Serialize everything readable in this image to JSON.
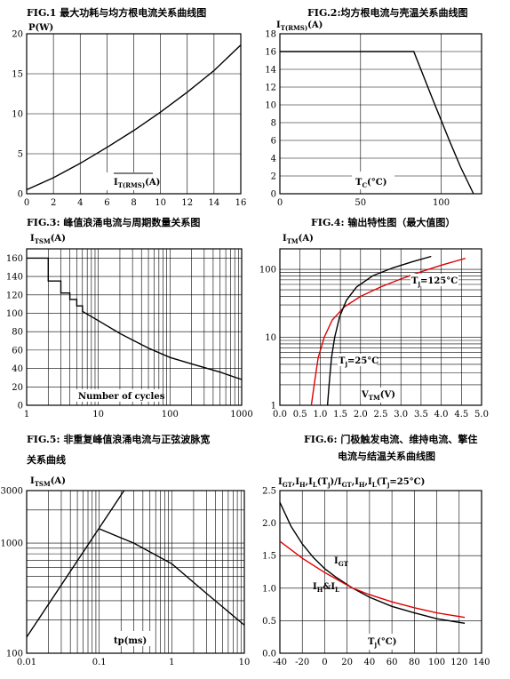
{
  "titles": {
    "fig1": "FIG.1  最大功耗与均方根电流关系曲线图",
    "fig2": "FIG.2:均方根电流与壳温关系曲线图",
    "fig3": "FIG.3:  峰值浪涌电流与周期数量关系图",
    "fig4": "FIG.4:  输出特性图（最大值图）",
    "fig5a": "FIG.5:  非重复峰值浪涌电流与正弦波脉宽",
    "fig5b": "关系曲线",
    "fig6a": "FIG.6:  门极触发电流、维持电流、擎住",
    "fig6b": "电流与结温关系曲线图"
  },
  "chart_data": [
    {
      "id": "fig1",
      "type": "line",
      "title": "最大功耗与均方根电流关系曲线图",
      "ylabel": "P(W)",
      "xlabel": "I_T(RMS)(A)",
      "xlim": [
        0,
        16
      ],
      "ylim": [
        0,
        20
      ],
      "xticks": [
        0,
        2,
        4,
        6,
        8,
        10,
        12,
        14,
        16
      ],
      "yticks": [
        0,
        5,
        10,
        15,
        20
      ],
      "grid": true,
      "series": [
        {
          "color": "#000000",
          "x": [
            0,
            2,
            4,
            6,
            8,
            10,
            12,
            14,
            16
          ],
          "y": [
            0.5,
            2.0,
            3.8,
            5.8,
            7.9,
            10.2,
            12.7,
            15.4,
            18.6
          ]
        }
      ]
    },
    {
      "id": "fig2",
      "type": "line",
      "title": "均方根电流与壳温关系曲线图",
      "ylabel": "I_T(RMS)(A)",
      "xlabel": "T_C(°C)",
      "xlim": [
        0,
        125
      ],
      "ylim": [
        0,
        18
      ],
      "xticks": [
        0,
        50,
        100
      ],
      "yticks": [
        0,
        2,
        4,
        6,
        8,
        10,
        12,
        14,
        16,
        18
      ],
      "grid": true,
      "series": [
        {
          "color": "#000000",
          "x": [
            0,
            83,
            95,
            105,
            112,
            120
          ],
          "y": [
            16,
            16,
            10.5,
            6.0,
            3.0,
            0
          ]
        }
      ]
    },
    {
      "id": "fig3",
      "type": "line",
      "title": "峰值浪涌电流与周期数量关系图",
      "ylabel": "I_TSM(A)",
      "xlabel": "Number of cycles",
      "xscale": "log",
      "xlim": [
        1,
        1000
      ],
      "ylim": [
        0,
        170
      ],
      "xticks": [
        1,
        10,
        100,
        1000
      ],
      "yticks": [
        0,
        20,
        40,
        60,
        80,
        100,
        120,
        140,
        160
      ],
      "grid": true,
      "series": [
        {
          "color": "#000000",
          "x": [
            1,
            2,
            2,
            3,
            3,
            4,
            4,
            5,
            5,
            6,
            6,
            10,
            20,
            50,
            100,
            200,
            500,
            1000
          ],
          "y": [
            160,
            160,
            135,
            135,
            122,
            122,
            115,
            115,
            108,
            108,
            102,
            92,
            78,
            62,
            52,
            45,
            36,
            28
          ]
        }
      ]
    },
    {
      "id": "fig4",
      "type": "line",
      "title": "输出特性图（最大值图）",
      "ylabel": "I_TM(A)",
      "xlabel": "V_TM(V)",
      "yscale": "log",
      "xlim": [
        0,
        5
      ],
      "ylim": [
        1,
        200
      ],
      "xticks": [
        0,
        0.5,
        1,
        1.5,
        2,
        2.5,
        3,
        3.5,
        4,
        4.5,
        5
      ],
      "xtick_labels": [
        "0.0",
        "0.5",
        "1.0",
        "1.5",
        "2.0",
        "2.5",
        "3.0",
        "3.5",
        "4.0",
        "4.5",
        "5.0"
      ],
      "yticks": [
        1,
        10,
        100
      ],
      "grid": true,
      "annotations": [
        "T_j=125°C",
        "T_j=25°C"
      ],
      "series": [
        {
          "name": "T_j=125°C",
          "color": "#e00000",
          "x": [
            0.78,
            0.85,
            0.95,
            1.1,
            1.3,
            1.6,
            2.0,
            2.5,
            3.0,
            3.5,
            4.0,
            4.6
          ],
          "y": [
            1,
            2,
            5,
            10,
            18,
            28,
            40,
            55,
            72,
            92,
            115,
            145
          ]
        },
        {
          "name": "T_j=25°C",
          "color": "#000000",
          "x": [
            1.18,
            1.22,
            1.28,
            1.36,
            1.48,
            1.65,
            1.9,
            2.3,
            2.8,
            3.3,
            3.75
          ],
          "y": [
            1,
            2,
            5,
            10,
            20,
            35,
            55,
            80,
            105,
            130,
            155
          ]
        }
      ]
    },
    {
      "id": "fig5",
      "type": "line",
      "title": "非重复峰值浪涌电流与正弦波脉宽关系曲线",
      "ylabel": "I_TSM(A)",
      "xlabel": "tp(ms)",
      "xscale": "log",
      "yscale": "log",
      "xlim": [
        0.01,
        10
      ],
      "ylim": [
        100,
        3000
      ],
      "xticks": [
        0.01,
        0.1,
        1,
        10
      ],
      "yticks": [
        100,
        1000,
        3000
      ],
      "grid": true,
      "series": [
        {
          "color": "#000000",
          "x": [
            0.01,
            0.22
          ],
          "y": [
            140,
            3000
          ]
        },
        {
          "color": "#000000",
          "x": [
            0.1,
            0.3,
            1,
            3,
            10
          ],
          "y": [
            1350,
            1000,
            650,
            350,
            180
          ]
        }
      ]
    },
    {
      "id": "fig6",
      "type": "line",
      "title": "门极触发电流、维持电流、擎住电流与结温关系曲线图",
      "ylabel": "I_GT,I_H,I_L(T_j)/I_GT,I_H,I_L(T_j=25°C)",
      "xlabel": "T_j(°C)",
      "xlim": [
        -40,
        140
      ],
      "ylim": [
        0,
        2.5
      ],
      "xticks": [
        -40,
        -20,
        0,
        20,
        40,
        60,
        80,
        100,
        120,
        140
      ],
      "yticks": [
        0,
        0.5,
        1.0,
        1.5,
        2.0,
        2.5
      ],
      "ytick_labels": [
        "0.0",
        "0.5",
        "1.0",
        "1.5",
        "2.0",
        "2.5"
      ],
      "grid": true,
      "annotations": [
        "I_GT",
        "I_H&I_L"
      ],
      "series": [
        {
          "name": "I_GT",
          "color": "#000000",
          "x": [
            -40,
            -30,
            -20,
            -10,
            0,
            10,
            25,
            40,
            60,
            80,
            100,
            125
          ],
          "y": [
            2.32,
            1.95,
            1.68,
            1.47,
            1.3,
            1.17,
            1.0,
            0.86,
            0.72,
            0.62,
            0.53,
            0.46
          ]
        },
        {
          "name": "I_H&I_L",
          "color": "#e00000",
          "x": [
            -40,
            -20,
            0,
            25,
            40,
            60,
            80,
            100,
            125
          ],
          "y": [
            1.72,
            1.46,
            1.24,
            1.0,
            0.9,
            0.79,
            0.7,
            0.62,
            0.55
          ]
        }
      ]
    }
  ]
}
